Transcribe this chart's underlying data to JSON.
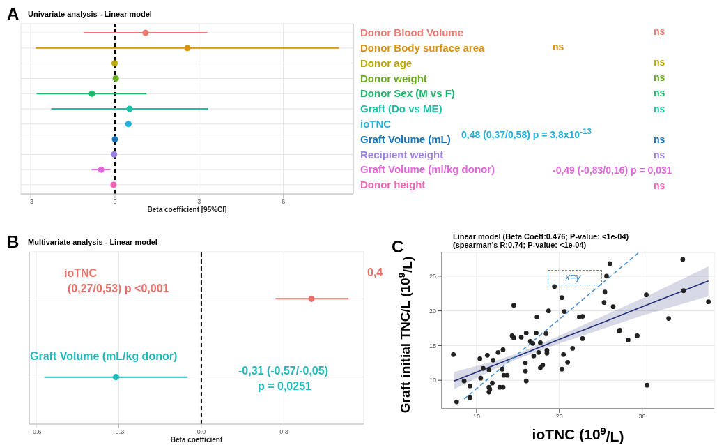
{
  "chart_data": [
    {
      "type": "scatter",
      "orientation": "horizontal",
      "title": "Univariate analysis - Linear model",
      "xlabel": "Beta coefficient [95%CI]",
      "annotations": [
        "A",
        "ns",
        "ns",
        "ns",
        "ns",
        "ns",
        "ns",
        "0,48 (0,37/0,58) p = 3,8x10$^{-13}$",
        "ns",
        "ns",
        "-0,49 (-0,83/0,16) p = 0,031",
        "ns"
      ],
      "categories": [
        "Donor Blood Volume",
        "Donor Body surface area",
        "Donor age",
        "Donor weight",
        "Donor Sex (M vs F)",
        "Graft (Do vs ME)",
        "ioTNC",
        "Graft Volume (mL)",
        "Recipient weight",
        "Graft Volume (ml/kg donor)",
        "Donor height"
      ],
      "values": [
        1.09,
        2.58,
        -0.01,
        0.03,
        -0.82,
        0.52,
        0.48,
        0.0,
        -0.03,
        -0.49,
        -0.05
      ],
      "errors": [
        [
          -1.12,
          3.29
        ],
        [
          -2.82,
          7.98
        ],
        null,
        null,
        [
          -2.79,
          1.12
        ],
        [
          -2.27,
          3.32
        ],
        [
          0.37,
          0.58
        ],
        null,
        null,
        [
          -0.83,
          -0.16
        ],
        null
      ],
      "colors": [
        "#f07a72",
        "#d8920e",
        "#b8a800",
        "#68ac1c",
        "#1cb86c",
        "#1cc0a4",
        "#20b2dc",
        "#1674bc",
        "#9c80e0",
        "#e068d8",
        "#f064b4"
      ],
      "xlim": [
        -3.35,
        8.49
      ],
      "xticks": [
        -3,
        0,
        3,
        6
      ],
      "grid": true,
      "marker": "circle",
      "ref_lines": [
        {
          "axis": "x",
          "value": 0,
          "color": "#000000",
          "line_style": "dashed"
        }
      ]
    },
    {
      "type": "scatter",
      "orientation": "horizontal",
      "title": "Multivariate analysis - Linear model",
      "xlabel": "Beta coefficient",
      "annotations": [
        "B",
        "(0,27/0,53) p <0,001",
        "0,4",
        "-0,31 (-0,57/-0,05)",
        "p = 0,0251"
      ],
      "categories": [
        "ioTNC",
        "Graft Volume (mL/kg donor)"
      ],
      "values": [
        0.4,
        -0.31
      ],
      "errors": [
        [
          0.27,
          0.535
        ],
        [
          -0.57,
          -0.05
        ]
      ],
      "colors": [
        "#e8706a",
        "#20b8b8"
      ],
      "xlim": [
        -0.625,
        0.59
      ],
      "xticks": [
        {
          "value": -0.6,
          "label": "-0.6"
        },
        {
          "value": -0.3,
          "label": "-0.3"
        },
        {
          "value": 0,
          "label": "0.0"
        },
        {
          "value": 0.3,
          "label": "0.3"
        }
      ],
      "grid": true,
      "marker": "circle",
      "ref_lines": [
        {
          "axis": "x",
          "value": 0,
          "color": "#000000",
          "line_style": "dashed"
        }
      ]
    },
    {
      "type": "scatter",
      "title": "Linear model (Beta Coeff:0.476; P-value: <1e-04)",
      "subtitle": " (spearman's R:0.74; P-value: <1e-04)",
      "xlabel": "ioTNC (10$^{9}$/L)",
      "ylabel": "Graft initial TNC/L (10$^{9}$/L)",
      "annotations": [
        "C",
        "x=y"
      ],
      "xlim": [
        5.8,
        38.7
      ],
      "xticks": [
        10,
        20,
        30
      ],
      "ylim": [
        5.9,
        28.4
      ],
      "yticks": [
        10,
        15,
        20,
        25
      ],
      "grid": true,
      "series": [
        {
          "type": "scatter",
          "color": "#222222",
          "marker": "circle",
          "x": [
            7.2,
            7.6,
            8.5,
            9.2,
            9.2,
            10.4,
            10.5,
            11.3,
            10.8,
            11.5,
            11.5,
            11.6,
            11.5,
            11.9,
            12.0,
            12.6,
            12.8,
            13.2,
            13.2,
            13.1,
            13.3,
            13.7,
            14.5,
            14.3,
            14.5,
            15.4,
            16.0,
            15.9,
            15.9,
            16.0,
            16.5,
            16.8,
            16.9,
            17.2,
            17.3,
            17.5,
            17.7,
            17.7,
            18.0,
            18.4,
            18.5,
            18.5,
            18.7,
            19.4,
            20.3,
            20.5,
            20.3,
            20.6,
            21.0,
            21.6,
            22.4,
            22.8,
            22.8,
            25.5,
            25.4,
            25.7,
            26.1,
            26.5,
            27.2,
            27.3,
            28.3,
            29.4,
            30.5,
            30.6,
            33.2,
            34.9,
            35.0,
            38.0
          ],
          "values": [
            13.7,
            6.9,
            9.9,
            9.2,
            7.5,
            13.1,
            10.3,
            13.6,
            11.7,
            11.5,
            9.0,
            8.7,
            8.3,
            9.6,
            12.9,
            14.0,
            9.0,
            9.0,
            14.4,
            11.6,
            10.7,
            10.7,
            20.8,
            16.4,
            16.1,
            16.2,
            16.8,
            12.5,
            11.3,
            9.9,
            15.6,
            15.3,
            13.5,
            16.8,
            19.1,
            14.0,
            15.4,
            11.8,
            12.2,
            16.7,
            14.3,
            13.9,
            20.0,
            23.5,
            21.9,
            13.7,
            11.6,
            19.9,
            12.6,
            14.6,
            19.1,
            19.2,
            16.0,
            22.7,
            21.2,
            25.0,
            26.8,
            20.6,
            17.1,
            17.2,
            15.8,
            16.4,
            22.3,
            9.3,
            18.9,
            27.4,
            22.9,
            21.3
          ]
        },
        {
          "type": "line",
          "color": "#1f2d7a",
          "marker": "none",
          "line_style": "solid",
          "x": [
            7.3,
            12,
            15,
            20,
            25,
            30,
            38
          ],
          "values": [
            9.9,
            12.1,
            13.5,
            15.9,
            18.2,
            20.6,
            24.3
          ],
          "lower": [
            8.7,
            11.5,
            13.1,
            15.3,
            17.3,
            19.3,
            22.1
          ],
          "upper": [
            11.2,
            12.7,
            13.9,
            16.4,
            19.1,
            21.8,
            26.4
          ]
        },
        {
          "type": "line",
          "color": "#4a90d0",
          "marker": "none",
          "line_style": "dashed",
          "x": [
            8.5,
            29.6
          ],
          "values": [
            7.3,
            28.4
          ]
        }
      ]
    }
  ]
}
